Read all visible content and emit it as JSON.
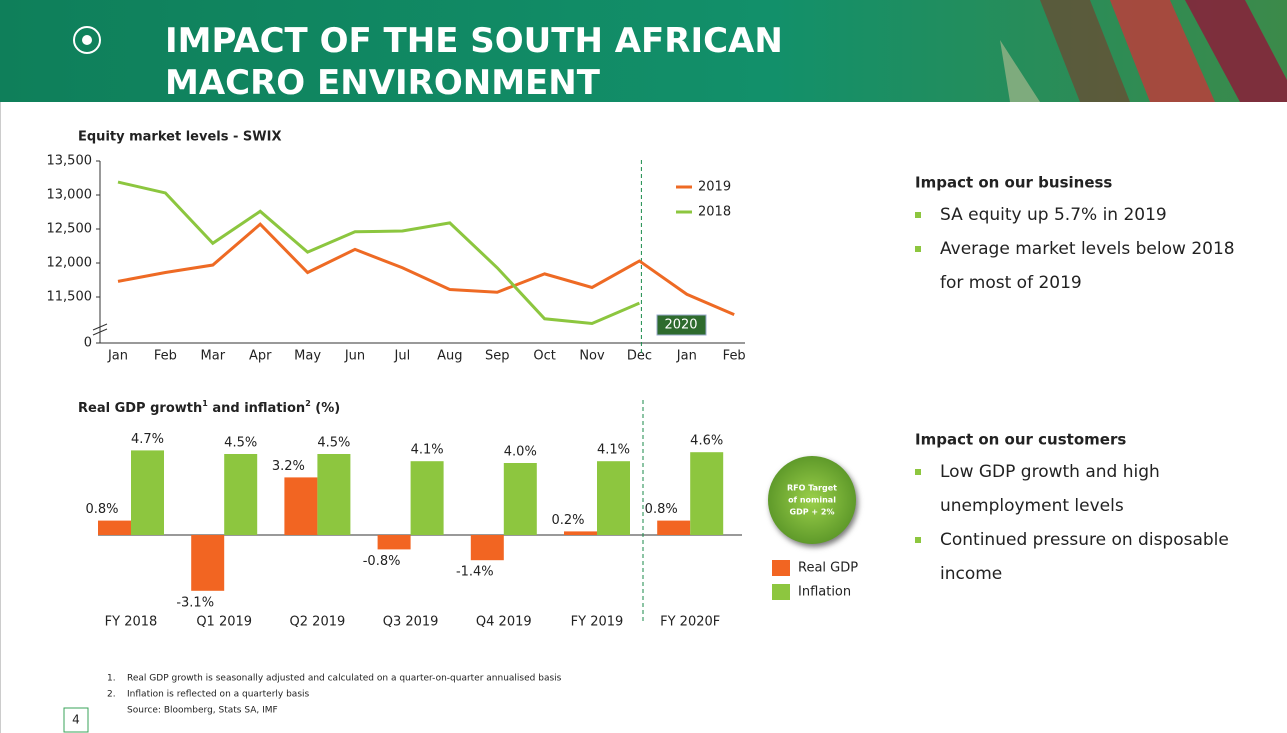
{
  "header": {
    "title": [
      "IMPACT OF THE SOUTH AFRICAN",
      "MACRO ENVIRONMENT"
    ]
  },
  "chart_data": [
    {
      "type": "line",
      "title": "Equity market levels - SWIX",
      "categories": [
        "Jan",
        "Feb",
        "Mar",
        "Apr",
        "May",
        "Jun",
        "Jul",
        "Aug",
        "Sep",
        "Oct",
        "Nov",
        "Dec",
        "Jan",
        "Feb"
      ],
      "series": [
        {
          "name": "2019",
          "color": "#ee6a24",
          "values": [
            11730,
            11860,
            11970,
            12570,
            11860,
            12200,
            11930,
            11610,
            11570,
            11840,
            11640,
            12030,
            11540,
            11240
          ]
        },
        {
          "name": "2018",
          "color": "#8cc63f",
          "values": [
            13190,
            13030,
            12290,
            12760,
            12160,
            12460,
            12470,
            12590,
            11930,
            11180,
            11110,
            11410,
            null,
            null
          ]
        }
      ],
      "ylim": [
        0,
        13500
      ],
      "yticks": [
        0,
        {
          "value": 11500,
          "label": "11,500"
        },
        {
          "value": 12000,
          "label": "12,000"
        },
        {
          "value": 12500,
          "label": "12,500"
        },
        {
          "value": 13000,
          "label": "13,000"
        },
        {
          "value": 13500,
          "label": "13,500"
        }
      ],
      "annotation": "2020",
      "legend": "top-right"
    },
    {
      "type": "bar",
      "title": [
        "Real GDP growth",
        "1",
        " and inflation",
        "2",
        " (%)"
      ],
      "categories": [
        "FY 2018",
        "Q1 2019",
        "Q2 2019",
        "Q3 2019",
        "Q4 2019",
        "FY 2019",
        "FY 2020F"
      ],
      "series": [
        {
          "name": "Real GDP",
          "color": "#f26522",
          "values": [
            0.8,
            -3.1,
            3.2,
            -0.8,
            -1.4,
            0.2,
            0.8
          ],
          "value_labels": [
            "0.8%",
            "-3.1%",
            "3.2%",
            "-0.8%",
            "-1.4%",
            "0.2%",
            "0.8%"
          ]
        },
        {
          "name": "Inflation",
          "color": "#8dc63f",
          "values": [
            4.7,
            4.5,
            4.5,
            4.1,
            4.0,
            4.1,
            4.6
          ],
          "value_labels": [
            "4.7%",
            "4.5%",
            "4.5%",
            "4.1%",
            "4.0%",
            "4.1%",
            "4.6%"
          ]
        }
      ],
      "annotation": [
        "RFO Target",
        "of nominal",
        "GDP + 2%"
      ],
      "legend": "bottom-right"
    }
  ],
  "panels": [
    {
      "title": "Impact on our business",
      "bullets": [
        [
          "SA equity up 5.7% in 2019"
        ],
        [
          "Average market levels below 2018",
          "for most of 2019"
        ]
      ]
    },
    {
      "title": "Impact on our customers",
      "bullets": [
        [
          "Low GDP growth and high",
          "unemployment levels"
        ],
        [
          "Continued pressure on disposable",
          "income"
        ]
      ]
    }
  ],
  "footnotes": [
    "1.    Real GDP growth is seasonally adjusted and calculated on a quarter-on-quarter annualised basis",
    "2.    Inflation is reflected on a quarterly basis",
    "       Source: Bloomberg, Stats SA, IMF"
  ],
  "page_number": "4"
}
